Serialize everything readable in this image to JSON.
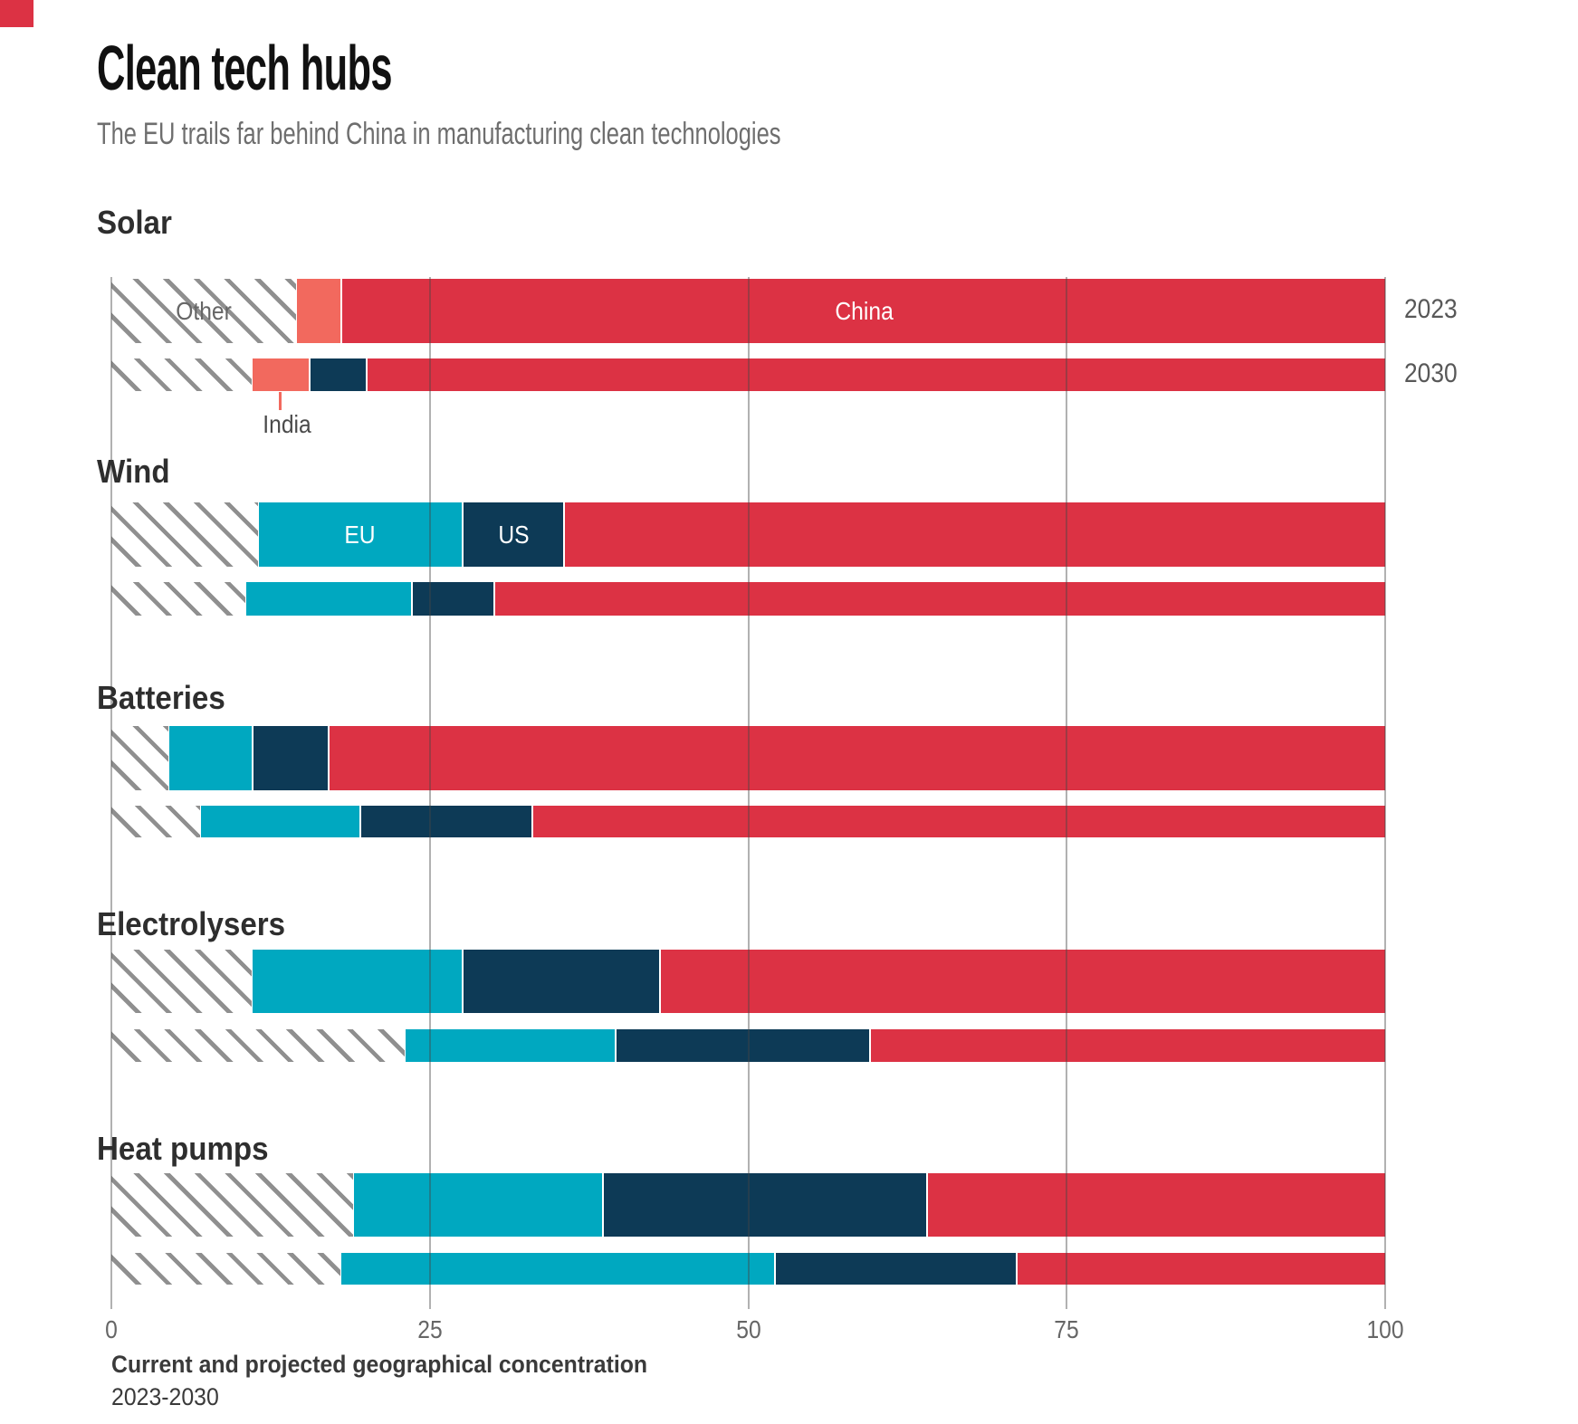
{
  "title": "Clean tech hubs",
  "subtitle": "The EU trails far behind China in manufacturing clean technologies",
  "footer": {
    "caption": "Current and projected geographical concentration",
    "period": "2023-2030"
  },
  "year_labels": [
    "2023",
    "2030"
  ],
  "colors": {
    "china_red": "#dc3244",
    "india_salmon": "#f2695e",
    "eu_cyan": "#00a8c0",
    "us_navy": "#0d3a56",
    "hatch_line": "#8f8f8f"
  },
  "chart_data": {
    "type": "bar",
    "orientation": "horizontal",
    "stacked": true,
    "unit": "percent",
    "grid": true,
    "legend_position": "in-bar labels",
    "x_axis": {
      "min": 0,
      "max": 100,
      "ticks": [
        0,
        25,
        50,
        75,
        100
      ]
    },
    "regions": [
      "Other",
      "India",
      "EU",
      "US",
      "China"
    ],
    "groups": [
      {
        "label": "Solar",
        "bars": [
          {
            "year": "2023",
            "segments": [
              {
                "region": "Other",
                "value": 14.5,
                "label": "Other"
              },
              {
                "region": "India",
                "value": 3.5
              },
              {
                "region": "China",
                "value": 82,
                "label": "China"
              }
            ]
          },
          {
            "year": "2030",
            "segments": [
              {
                "region": "Other",
                "value": 11
              },
              {
                "region": "India",
                "value": 4.5,
                "callout": "India"
              },
              {
                "region": "US",
                "value": 4.5
              },
              {
                "region": "China",
                "value": 80
              }
            ]
          }
        ]
      },
      {
        "label": "Wind",
        "bars": [
          {
            "year": "2023",
            "segments": [
              {
                "region": "Other",
                "value": 11.5
              },
              {
                "region": "EU",
                "value": 16,
                "label": "EU"
              },
              {
                "region": "US",
                "value": 8,
                "label": "US"
              },
              {
                "region": "China",
                "value": 64.5
              }
            ]
          },
          {
            "year": "2030",
            "segments": [
              {
                "region": "Other",
                "value": 10.5
              },
              {
                "region": "EU",
                "value": 13
              },
              {
                "region": "US",
                "value": 6.5
              },
              {
                "region": "China",
                "value": 70
              }
            ]
          }
        ]
      },
      {
        "label": "Batteries",
        "bars": [
          {
            "year": "2023",
            "segments": [
              {
                "region": "Other",
                "value": 4.5
              },
              {
                "region": "EU",
                "value": 6.5
              },
              {
                "region": "US",
                "value": 6
              },
              {
                "region": "China",
                "value": 83
              }
            ]
          },
          {
            "year": "2030",
            "segments": [
              {
                "region": "Other",
                "value": 7
              },
              {
                "region": "EU",
                "value": 12.5
              },
              {
                "region": "US",
                "value": 13.5
              },
              {
                "region": "China",
                "value": 67
              }
            ]
          }
        ]
      },
      {
        "label": "Electrolysers",
        "bars": [
          {
            "year": "2023",
            "segments": [
              {
                "region": "Other",
                "value": 11
              },
              {
                "region": "EU",
                "value": 16.5
              },
              {
                "region": "US",
                "value": 15.5
              },
              {
                "region": "China",
                "value": 57
              }
            ]
          },
          {
            "year": "2030",
            "segments": [
              {
                "region": "Other",
                "value": 23
              },
              {
                "region": "EU",
                "value": 16.5
              },
              {
                "region": "US",
                "value": 20
              },
              {
                "region": "China",
                "value": 40.5
              }
            ]
          }
        ]
      },
      {
        "label": "Heat pumps",
        "bars": [
          {
            "year": "2023",
            "segments": [
              {
                "region": "Other",
                "value": 19
              },
              {
                "region": "EU",
                "value": 19.5
              },
              {
                "region": "US",
                "value": 25.5
              },
              {
                "region": "China",
                "value": 36
              }
            ]
          },
          {
            "year": "2030",
            "segments": [
              {
                "region": "Other",
                "value": 18
              },
              {
                "region": "EU",
                "value": 34
              },
              {
                "region": "US",
                "value": 19
              },
              {
                "region": "China",
                "value": 29
              }
            ]
          }
        ]
      }
    ]
  }
}
